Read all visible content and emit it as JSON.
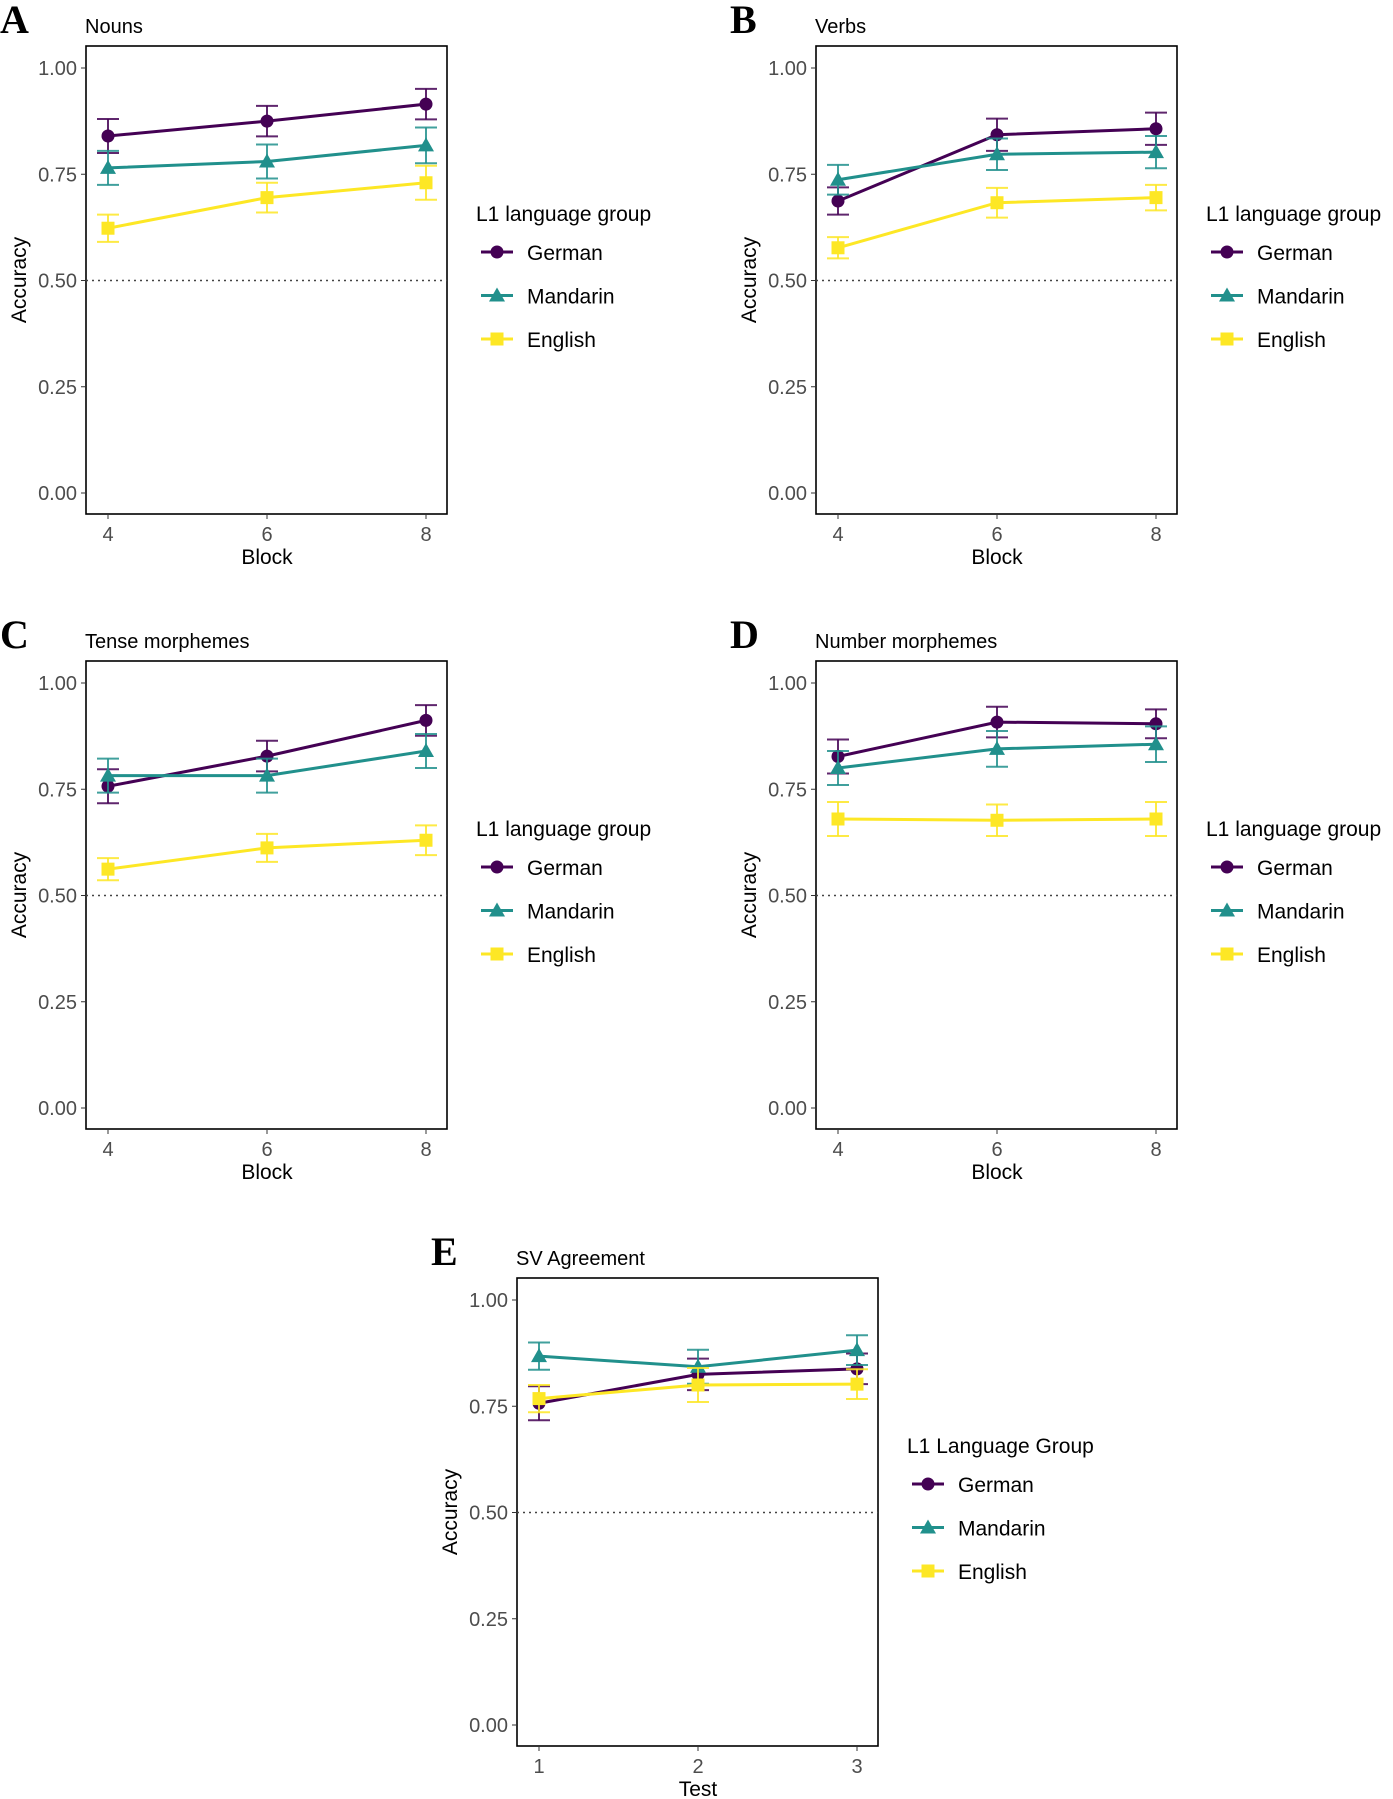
{
  "colors": {
    "German": "#440154",
    "Mandarin": "#21908C",
    "English": "#FDE725"
  },
  "chart_data": [
    {
      "panel": "A",
      "type": "line",
      "title": "Nouns",
      "xlabel": "Block",
      "ylabel": "Accuracy",
      "x": [
        4,
        6,
        8
      ],
      "ylim": [
        0,
        1
      ],
      "yticks": [
        "0.00",
        "0.25",
        "0.50",
        "0.75",
        "1.00"
      ],
      "reference_line": 0.5,
      "legend_title": "L1 language group",
      "legend_placement": "right",
      "series": [
        {
          "name": "German",
          "marker": "circle",
          "values": [
            0.84,
            0.875,
            0.915
          ],
          "err": [
            0.04,
            0.036,
            0.036
          ]
        },
        {
          "name": "Mandarin",
          "marker": "triangle",
          "values": [
            0.765,
            0.78,
            0.818
          ],
          "err": [
            0.04,
            0.04,
            0.042
          ]
        },
        {
          "name": "English",
          "marker": "square",
          "values": [
            0.623,
            0.695,
            0.73
          ],
          "err": [
            0.032,
            0.035,
            0.04
          ]
        }
      ]
    },
    {
      "panel": "B",
      "type": "line",
      "title": "Verbs",
      "xlabel": "Block",
      "ylabel": "Accuracy",
      "x": [
        4,
        6,
        8
      ],
      "ylim": [
        0,
        1
      ],
      "yticks": [
        "0.00",
        "0.25",
        "0.50",
        "0.75",
        "1.00"
      ],
      "reference_line": 0.5,
      "legend_title": "L1 language group",
      "legend_placement": "right",
      "series": [
        {
          "name": "German",
          "marker": "circle",
          "values": [
            0.687,
            0.843,
            0.857
          ],
          "err": [
            0.032,
            0.038,
            0.038
          ]
        },
        {
          "name": "Mandarin",
          "marker": "triangle",
          "values": [
            0.737,
            0.797,
            0.802
          ],
          "err": [
            0.035,
            0.037,
            0.038
          ]
        },
        {
          "name": "English",
          "marker": "square",
          "values": [
            0.577,
            0.683,
            0.695
          ],
          "err": [
            0.025,
            0.035,
            0.03
          ]
        }
      ]
    },
    {
      "panel": "C",
      "type": "line",
      "title": "Tense morphemes",
      "xlabel": "Block",
      "ylabel": "Accuracy",
      "x": [
        4,
        6,
        8
      ],
      "ylim": [
        0,
        1
      ],
      "yticks": [
        "0.00",
        "0.25",
        "0.50",
        "0.75",
        "1.00"
      ],
      "reference_line": 0.5,
      "legend_title": "L1 language group",
      "legend_placement": "right",
      "series": [
        {
          "name": "German",
          "marker": "circle",
          "values": [
            0.757,
            0.828,
            0.912
          ],
          "err": [
            0.04,
            0.036,
            0.036
          ]
        },
        {
          "name": "Mandarin",
          "marker": "triangle",
          "values": [
            0.782,
            0.782,
            0.84
          ],
          "err": [
            0.04,
            0.04,
            0.04
          ]
        },
        {
          "name": "English",
          "marker": "square",
          "values": [
            0.562,
            0.612,
            0.63
          ],
          "err": [
            0.026,
            0.033,
            0.035
          ]
        }
      ]
    },
    {
      "panel": "D",
      "type": "line",
      "title": "Number morphemes",
      "xlabel": "Block",
      "ylabel": "Accuracy",
      "x": [
        4,
        6,
        8
      ],
      "ylim": [
        0,
        1
      ],
      "yticks": [
        "0.00",
        "0.25",
        "0.50",
        "0.75",
        "1.00"
      ],
      "reference_line": 0.5,
      "legend_title": "L1 language group",
      "legend_placement": "right",
      "series": [
        {
          "name": "German",
          "marker": "circle",
          "values": [
            0.827,
            0.908,
            0.904
          ],
          "err": [
            0.04,
            0.036,
            0.034
          ]
        },
        {
          "name": "Mandarin",
          "marker": "triangle",
          "values": [
            0.8,
            0.845,
            0.856
          ],
          "err": [
            0.04,
            0.042,
            0.042
          ]
        },
        {
          "name": "English",
          "marker": "square",
          "values": [
            0.68,
            0.677,
            0.68
          ],
          "err": [
            0.04,
            0.037,
            0.04
          ]
        }
      ]
    },
    {
      "panel": "E",
      "type": "line",
      "title": "SV Agreement",
      "xlabel": "Test",
      "ylabel": "Accuracy",
      "x": [
        1,
        2,
        3
      ],
      "ylim": [
        0,
        1
      ],
      "yticks": [
        "0.00",
        "0.25",
        "0.50",
        "0.75",
        "1.00"
      ],
      "reference_line": 0.5,
      "legend_title": "L1 Language Group",
      "legend_placement": "right",
      "series": [
        {
          "name": "German",
          "marker": "circle",
          "values": [
            0.757,
            0.825,
            0.838
          ],
          "err": [
            0.04,
            0.037,
            0.036
          ]
        },
        {
          "name": "Mandarin",
          "marker": "triangle",
          "values": [
            0.868,
            0.843,
            0.882
          ],
          "err": [
            0.032,
            0.04,
            0.035
          ]
        },
        {
          "name": "English",
          "marker": "square",
          "values": [
            0.768,
            0.8,
            0.802
          ],
          "err": [
            0.032,
            0.04,
            0.035
          ]
        }
      ]
    }
  ]
}
